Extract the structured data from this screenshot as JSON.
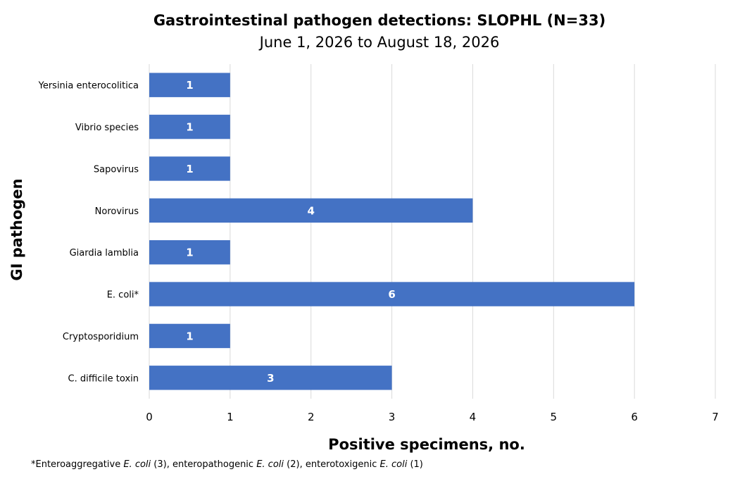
{
  "chart_data": {
    "type": "bar",
    "orientation": "horizontal",
    "title": "Gastrointestinal pathogen detections: SLOPHL (N=33)",
    "subtitle": "June 1, 2026 to August 18, 2026",
    "xlabel": "Positive specimens, no.",
    "ylabel": "GI pathogen",
    "categories": [
      "Yersinia enterocolitica",
      "Vibrio species",
      "Sapovirus",
      "Norovirus",
      "Giardia lamblia",
      "E. coli*",
      "Cryptosporidium",
      "C. difficile toxin"
    ],
    "values": [
      1,
      1,
      1,
      4,
      1,
      6,
      1,
      3
    ],
    "xlim": [
      0,
      7
    ],
    "xticks": [
      0,
      1,
      2,
      3,
      4,
      5,
      6,
      7
    ],
    "grid": true,
    "data_labels": true,
    "legend": "none",
    "bar_color": "#4472C4",
    "footnote": {
      "prefix": "*Enteroaggregative ",
      "e1": "E. coli",
      "t1": " (3), enteropathogenic ",
      "e2": "E. coli",
      "t2": " (2), enterotoxigenic ",
      "e3": "E. coli",
      "t3": " (1)"
    }
  }
}
